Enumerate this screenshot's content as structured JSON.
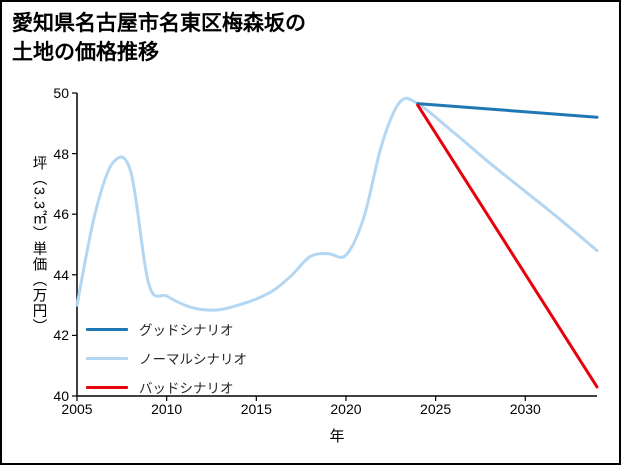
{
  "page": {
    "title_line1": "愛知県名古屋市名東区梅森坂の",
    "title_line2": "土地の価格推移"
  },
  "chart_data": {
    "type": "line",
    "title": "愛知県名古屋市名東区梅森坂の土地の価格推移",
    "xlabel": "年",
    "ylabel": "坪（3.3㎡）単価（万円）",
    "xlim": [
      2005,
      2034
    ],
    "ylim": [
      40,
      50
    ],
    "xticks": [
      2005,
      2010,
      2015,
      2020,
      2025,
      2030
    ],
    "yticks": [
      40,
      42,
      44,
      46,
      48,
      50
    ],
    "grid": false,
    "legend_position": "inside-lower-left",
    "series": [
      {
        "name": "グッドシナリオ",
        "color": "#1f77b4",
        "line_width": 3,
        "z_order": 2,
        "x": [
          2024,
          2034
        ],
        "y": [
          49.65,
          49.2
        ]
      },
      {
        "name": "ノーマルシナリオ",
        "color": "#b3d7f2",
        "line_width": 3,
        "z_order": 1,
        "x": [
          2005,
          2006,
          2007,
          2008,
          2009,
          2010,
          2011,
          2012,
          2013,
          2014,
          2015,
          2016,
          2017,
          2018,
          2019,
          2020,
          2021,
          2022,
          2023,
          2024,
          2026,
          2028,
          2030,
          2032,
          2034
        ],
        "y": [
          43.0,
          46.0,
          47.7,
          47.4,
          43.7,
          43.3,
          43.0,
          42.85,
          42.85,
          43.0,
          43.2,
          43.5,
          44.0,
          44.6,
          44.7,
          44.65,
          45.9,
          48.3,
          49.7,
          49.65,
          48.7,
          47.7,
          46.75,
          45.8,
          44.8
        ]
      },
      {
        "name": "バッドシナリオ",
        "color": "#e8000b",
        "line_width": 3,
        "z_order": 3,
        "x": [
          2024,
          2034
        ],
        "y": [
          49.6,
          40.3
        ]
      }
    ]
  }
}
